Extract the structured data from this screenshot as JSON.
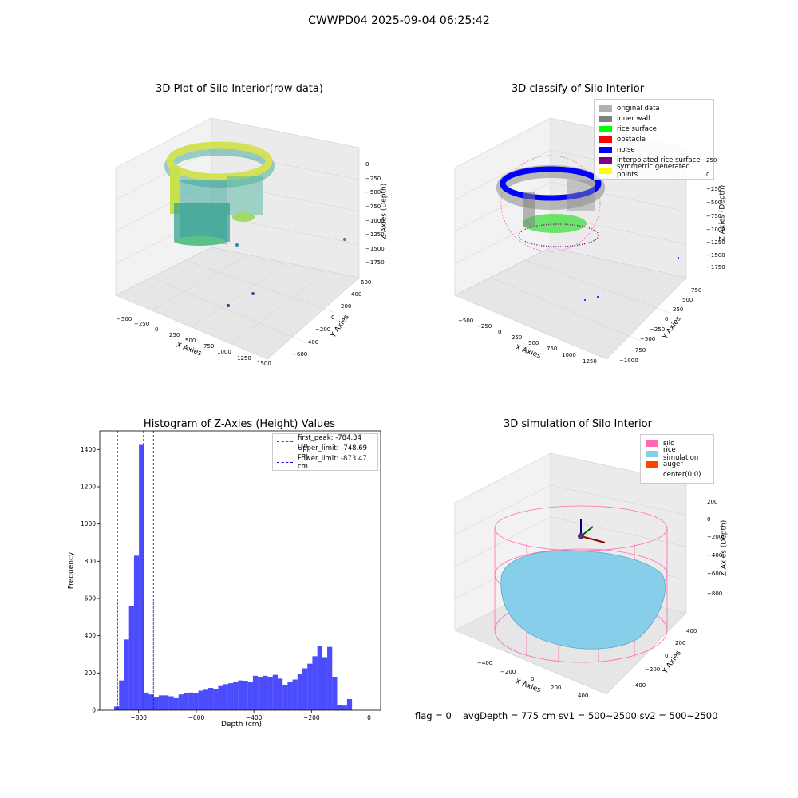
{
  "suptitle": "CWWPD04 2025-09-04 06:25:42",
  "panels": {
    "raw": {
      "title": "3D Plot of Silo Interior(row data)",
      "xlabel": "X Axies",
      "ylabel": "Y Axies",
      "zlabel": "Z Axies (Depth)",
      "xticks": [
        "−500",
        "−250",
        "0",
        "250",
        "500",
        "750",
        "1000",
        "1250",
        "1500"
      ],
      "yticks": [
        "600",
        "400",
        "200",
        "0",
        "−200",
        "−400",
        "−600"
      ],
      "zticks": [
        "0",
        "−250",
        "−500",
        "−750",
        "−1000",
        "−1250",
        "−1500",
        "−1750"
      ]
    },
    "classify": {
      "title": "3D classify of Silo Interior",
      "xlabel": "X Axies",
      "ylabel": "Y Axies",
      "zlabel": "Z Axies (Depth)",
      "xticks": [
        "−500",
        "−250",
        "0",
        "250",
        "500",
        "750",
        "1000",
        "1250"
      ],
      "yticks": [
        "750",
        "500",
        "250",
        "0",
        "−250",
        "−500",
        "−750",
        "−1000"
      ],
      "zticks": [
        "250",
        "0",
        "−250",
        "−500",
        "−750",
        "−1000",
        "−1250",
        "−1500",
        "−1750"
      ],
      "legend": [
        {
          "label": "original data",
          "color": "#b0b0b0"
        },
        {
          "label": "inner wall",
          "color": "#808080"
        },
        {
          "label": "rice surface",
          "color": "#00ff00"
        },
        {
          "label": "obstacle",
          "color": "#ff0000"
        },
        {
          "label": "noise",
          "color": "#0000ff"
        },
        {
          "label": "interpolated rice surface",
          "color": "#800080"
        },
        {
          "label": "symmetric generated points",
          "color": "#ffff00"
        }
      ]
    },
    "simulation": {
      "title": "3D simulation of Silo Interior",
      "xlabel": "X Axies",
      "ylabel": "Y Axies",
      "zlabel": "Z Axies (Depth)",
      "xticks": [
        "−400",
        "−200",
        "0",
        "200",
        "400"
      ],
      "yticks": [
        "400",
        "200",
        "0",
        "−200",
        "−400"
      ],
      "zticks": [
        "200",
        "0",
        "−200",
        "−400",
        "−600",
        "−800"
      ],
      "legend": [
        {
          "label": "silo",
          "color": "#ff69b4"
        },
        {
          "label": "rice simulation",
          "color": "#87ceeb"
        },
        {
          "label": "auger",
          "color": "#ff4500"
        },
        {
          "label": "center(0,0)",
          "color": "#ffffff"
        }
      ]
    }
  },
  "chart_data": {
    "type": "bar",
    "title": "Histogram of Z-Axies (Height) Values",
    "xlabel": "Depth (cm)",
    "ylabel": "Frequency",
    "xlim": [
      -935,
      40
    ],
    "ylim": [
      0,
      1500
    ],
    "xticks": [
      -800,
      -600,
      -400,
      -200,
      0
    ],
    "yticks": [
      0,
      200,
      400,
      600,
      800,
      1000,
      1200,
      1400
    ],
    "bar_color": "#0000ff",
    "bin_edges_start": -885,
    "bin_width": 17.2,
    "values": [
      20,
      160,
      380,
      560,
      830,
      1425,
      95,
      85,
      70,
      80,
      80,
      75,
      65,
      85,
      90,
      95,
      90,
      105,
      110,
      120,
      115,
      130,
      140,
      145,
      150,
      160,
      155,
      150,
      185,
      180,
      185,
      180,
      190,
      170,
      135,
      150,
      165,
      195,
      225,
      250,
      290,
      345,
      285,
      340,
      180,
      30,
      25,
      60
    ],
    "lines": [
      {
        "label": "first_peak: -784.34 cm",
        "x": -784.34,
        "color": "#ff0000"
      },
      {
        "label": "Upper_limit: -748.69 cm",
        "x": -748.69,
        "color": "#0000cc"
      },
      {
        "label": "Lower_limit: -873.47 cm",
        "x": -873.47,
        "color": "#0000cc"
      }
    ],
    "legend_position": "top-right"
  },
  "footer": {
    "flag": "flag = 0",
    "stats": "avgDepth = 775 cm  sv1 = 500~2500  sv2 = 500~2500"
  }
}
